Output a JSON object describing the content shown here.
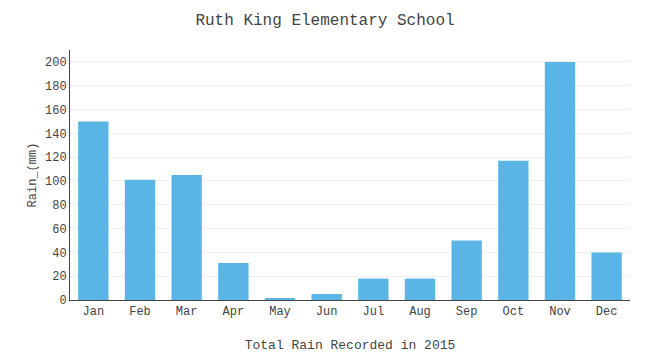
{
  "chart_data": {
    "type": "bar",
    "title": "Ruth King Elementary School",
    "xlabel": "Total Rain Recorded in 2015",
    "ylabel": "Rain_(mm)",
    "categories": [
      "Jan",
      "Feb",
      "Mar",
      "Apr",
      "May",
      "Jun",
      "Jul",
      "Aug",
      "Sep",
      "Oct",
      "Nov",
      "Dec"
    ],
    "values": [
      150,
      101,
      105,
      31,
      1,
      5,
      18,
      18,
      50,
      117,
      200,
      40
    ],
    "color": "#5ab4e5",
    "ylim": [
      0,
      210
    ],
    "yticks": [
      0,
      20,
      40,
      60,
      80,
      100,
      120,
      140,
      160,
      180,
      200
    ],
    "grid": true
  }
}
